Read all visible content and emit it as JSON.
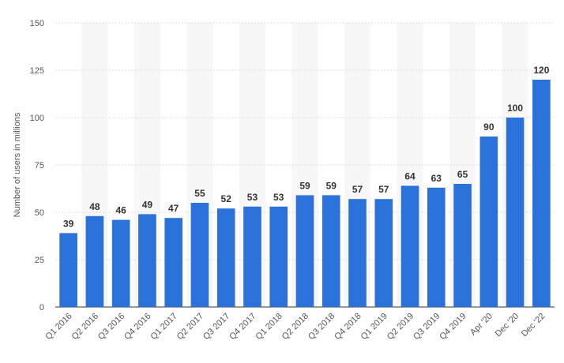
{
  "chart_data": {
    "type": "bar",
    "title": "",
    "xlabel": "",
    "ylabel": "Number of users in millions",
    "ylim": [
      0,
      150
    ],
    "yticks": [
      0,
      25,
      50,
      75,
      100,
      125,
      150
    ],
    "grid": true,
    "bar_color": "#2a72d9",
    "categories": [
      "Q1 2016",
      "Q2 2016",
      "Q3 2016",
      "Q4 2016",
      "Q1 2017",
      "Q2 2017",
      "Q3 2017",
      "Q4 2017",
      "Q1 2018",
      "Q2 2018",
      "Q3 2018",
      "Q4 2018",
      "Q1 2019",
      "Q2 2019",
      "Q3 2019",
      "Q4 2019",
      "Apr '20",
      "Dec '20",
      "Dec '22"
    ],
    "values": [
      39,
      48,
      46,
      49,
      47,
      55,
      52,
      53,
      53,
      59,
      59,
      57,
      57,
      64,
      63,
      65,
      90,
      100,
      120
    ]
  }
}
